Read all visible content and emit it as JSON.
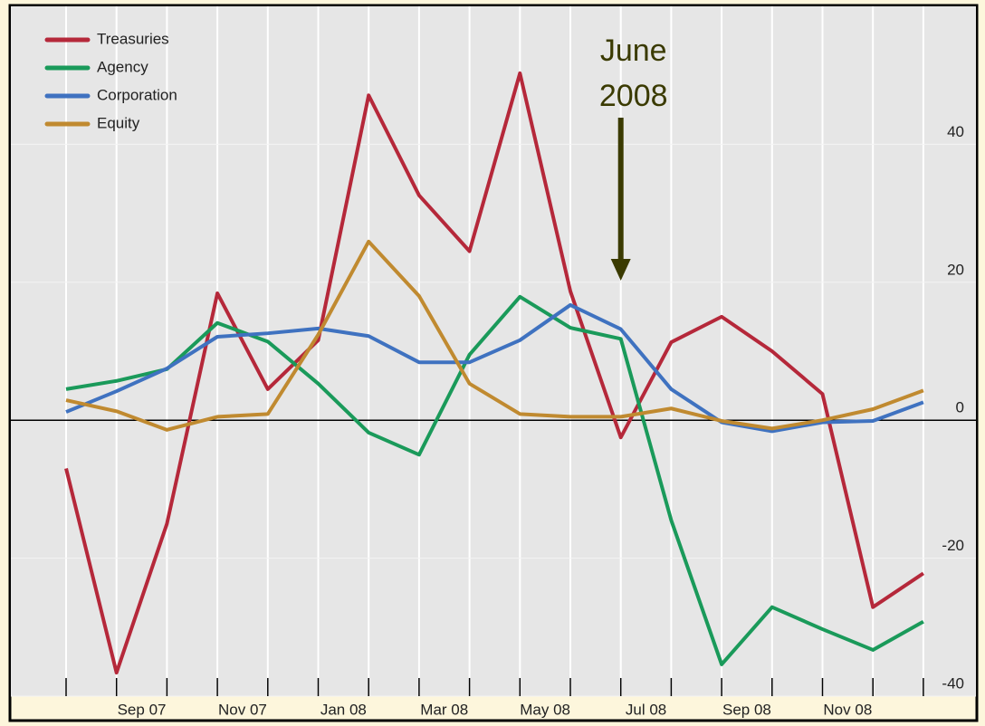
{
  "chart_data": {
    "type": "line",
    "categories": [
      null,
      "Sep 07",
      null,
      "Nov 07",
      null,
      "Jan 08",
      null,
      "Mar 08",
      null,
      "May 08",
      null,
      "Jul 08",
      null,
      "Sep 08",
      null,
      "Nov 08",
      null,
      null
    ],
    "series": [
      {
        "name": "Treasuries",
        "color": "#b5283a",
        "values": [
          -7,
          -36.6,
          -15,
          18.4,
          4.5,
          11.6,
          47.1,
          32.6,
          24.5,
          50.3,
          18.7,
          -2.5,
          11.3,
          15,
          10,
          3.8,
          -27.1,
          -22.2
        ]
      },
      {
        "name": "Agency",
        "color": "#1a9a5a",
        "values": [
          4.5,
          5.7,
          7.4,
          14.1,
          11.4,
          5.3,
          -1.8,
          -5,
          9.5,
          17.9,
          13.4,
          11.8,
          -14.5,
          -35.4,
          -27.1,
          -30.3,
          -33.3,
          -29.2
        ]
      },
      {
        "name": "Corporation",
        "color": "#3f72c0",
        "values": [
          1.2,
          4.2,
          7.5,
          12.1,
          12.6,
          13.3,
          12.2,
          8.4,
          8.4,
          11.6,
          16.7,
          13.2,
          4.5,
          -0.3,
          -1.6,
          -0.3,
          -0.1,
          2.6
        ]
      },
      {
        "name": "Equity",
        "color": "#c08a30",
        "values": [
          2.9,
          1.3,
          -1.4,
          0.5,
          0.9,
          12.4,
          25.9,
          18,
          5.3,
          0.9,
          0.5,
          0.5,
          1.7,
          -0.1,
          -1.2,
          0,
          1.6,
          4.3
        ]
      }
    ],
    "ylim": [
      -40,
      60
    ],
    "yticks": [
      -40,
      -20,
      0,
      20,
      40
    ],
    "grid": true,
    "legend": "top-left",
    "annotation": {
      "lines": [
        "June",
        "2008"
      ],
      "index": 11,
      "color": "#3a3a00"
    }
  }
}
